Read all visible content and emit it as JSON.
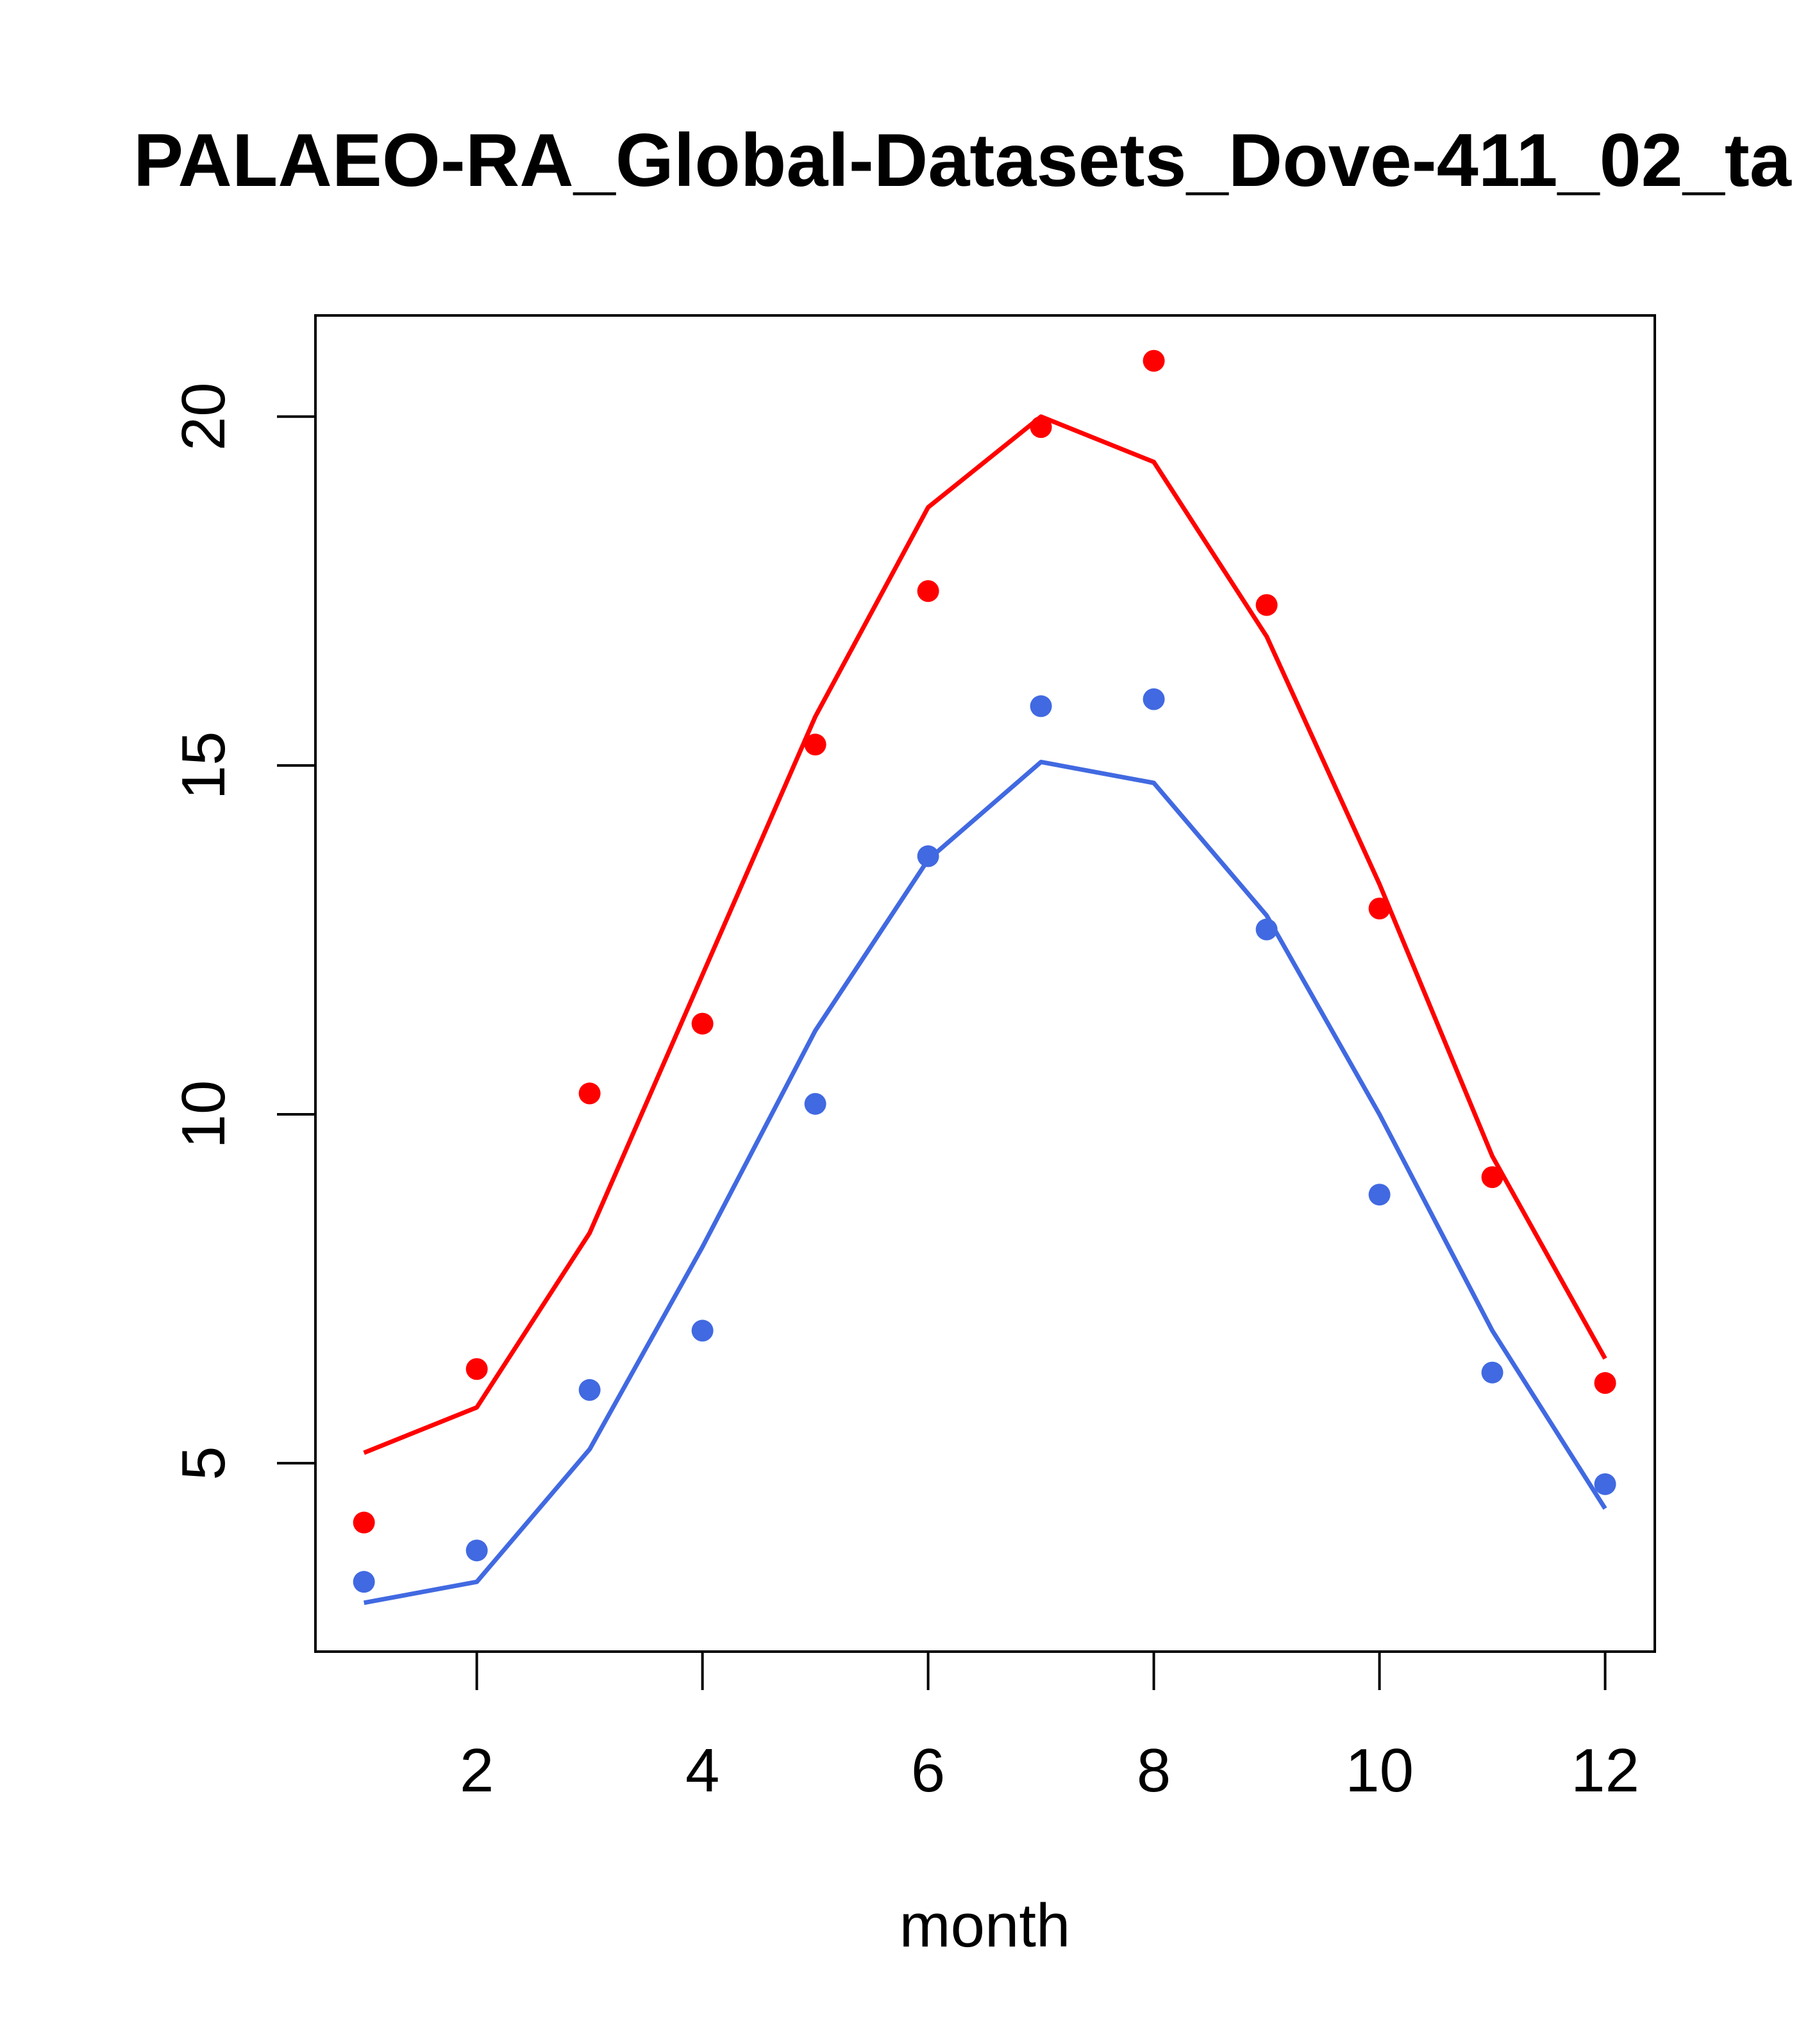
{
  "chart_data": {
    "type": "line",
    "title": "PALAEO-RA_Global-Datasets_Dove-411_02_ta",
    "xlabel": "month",
    "ylabel": "",
    "xlim": [
      0.57,
      12.44
    ],
    "ylim": [
      2.3,
      21.45
    ],
    "x_ticks": [
      2,
      4,
      6,
      8,
      10,
      12
    ],
    "y_ticks": [
      5,
      10,
      15,
      20
    ],
    "x": [
      1,
      2,
      3,
      4,
      5,
      6,
      7,
      8,
      9,
      10,
      11,
      12
    ],
    "series": [
      {
        "name": "red-line",
        "kind": "line",
        "color": "#ff0000",
        "values": [
          5.15,
          5.8,
          8.3,
          12.0,
          15.7,
          18.7,
          20.0,
          19.35,
          16.85,
          13.3,
          9.4,
          6.5
        ]
      },
      {
        "name": "red-points",
        "kind": "points",
        "color": "#ff0000",
        "values": [
          4.15,
          6.35,
          10.3,
          11.3,
          15.3,
          17.5,
          19.85,
          20.8,
          17.3,
          12.95,
          9.1,
          6.15
        ]
      },
      {
        "name": "blue-line",
        "kind": "line",
        "color": "#4169e1",
        "values": [
          3.0,
          3.3,
          5.2,
          8.1,
          11.2,
          13.65,
          15.05,
          14.75,
          12.85,
          10.0,
          6.9,
          4.35
        ]
      },
      {
        "name": "blue-points",
        "kind": "points",
        "color": "#4169e1",
        "values": [
          3.3,
          3.75,
          6.05,
          6.9,
          10.15,
          13.7,
          15.85,
          15.95,
          12.65,
          8.85,
          6.3,
          4.7
        ]
      }
    ]
  }
}
